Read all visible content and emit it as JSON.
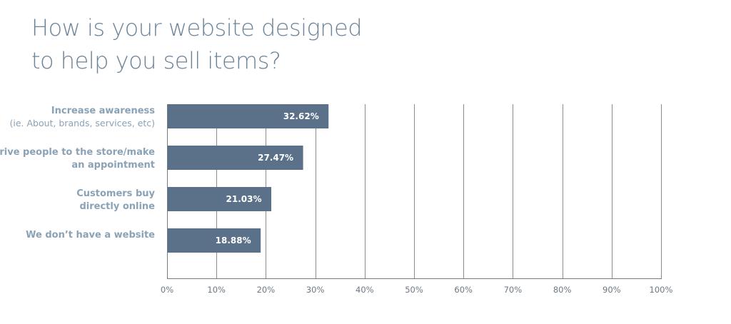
{
  "chart_data": {
    "type": "bar",
    "orientation": "horizontal",
    "title_lines": [
      "How is your website designed",
      "to help you sell items?"
    ],
    "categories": [
      {
        "lines": [
          "Increase awareness"
        ],
        "sub": "(ie. About, brands, services, etc)"
      },
      {
        "lines": [
          "Drive people to the store/make",
          "an appointment"
        ],
        "sub": ""
      },
      {
        "lines": [
          "Customers buy",
          "directly online"
        ],
        "sub": ""
      },
      {
        "lines": [
          "We don’t have a website"
        ],
        "sub": ""
      }
    ],
    "values": [
      32.62,
      27.47,
      21.03,
      18.88
    ],
    "value_labels": [
      "32.62%",
      "27.47%",
      "21.03%",
      "18.88%"
    ],
    "xlim": [
      0,
      100
    ],
    "xticks": [
      0,
      10,
      20,
      30,
      40,
      50,
      60,
      70,
      80,
      90,
      100
    ],
    "xtick_labels": [
      "0%",
      "10%",
      "20%",
      "30%",
      "40%",
      "50%",
      "60%",
      "70%",
      "80%",
      "90%",
      "100%"
    ],
    "grid": true,
    "colors": {
      "bar": "#5a7189",
      "title": "#6c8398",
      "category": "#8aa2b6",
      "tick": "#6d7884",
      "grid": "#8c8c8c",
      "axis": "#7a7a7a"
    }
  }
}
